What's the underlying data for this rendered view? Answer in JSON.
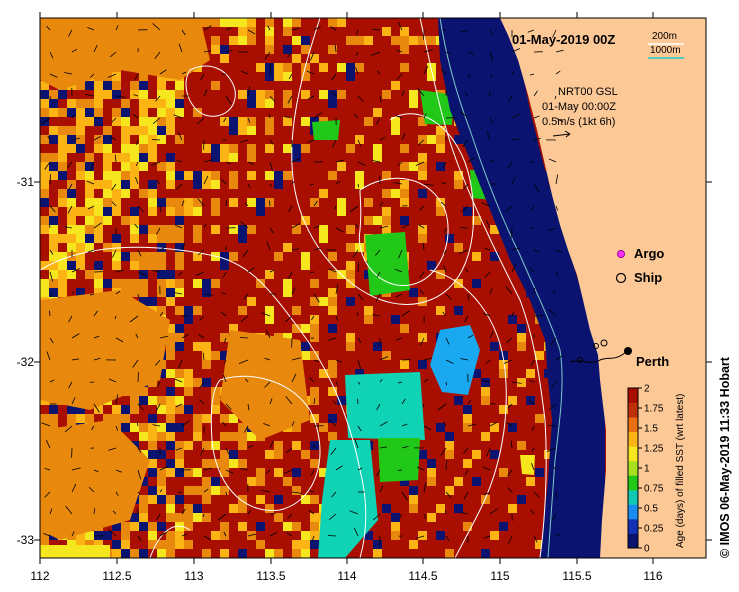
{
  "title": "01-May-2019 00Z",
  "product": {
    "name": "NRT00 GSL",
    "time": "01-May 00:00Z",
    "scale": "0.5m/s (1kt 6h)"
  },
  "contours": {
    "c200": "200m",
    "c1000": "1000m"
  },
  "legend": {
    "argo": "Argo",
    "ship": "Ship"
  },
  "city": "Perth",
  "credit": "© IMOS 06-May-2019 11:33 Hobart",
  "colorbar": {
    "label": "Age (days) of filled SST (wrt latest)",
    "ticks": [
      "0",
      "0.25",
      "0.5",
      "0.75",
      "1",
      "1.25",
      "1.5",
      "1.75",
      "2"
    ]
  },
  "x_ticks": [
    "112",
    "112.5",
    "113",
    "113.5",
    "114",
    "114.5",
    "115",
    "115.5",
    "116"
  ],
  "y_ticks": [
    "-31",
    "-32",
    "-33"
  ],
  "colors": {
    "land": "#fcc896",
    "dark_blue": "#0a1470",
    "dark_red": "#a80f00",
    "orange": "#e8890e",
    "amber": "#fcb414",
    "yellow": "#f5e61e",
    "green": "#22c818",
    "teal": "#10d2b4",
    "cyan": "#1aa8f0"
  }
}
